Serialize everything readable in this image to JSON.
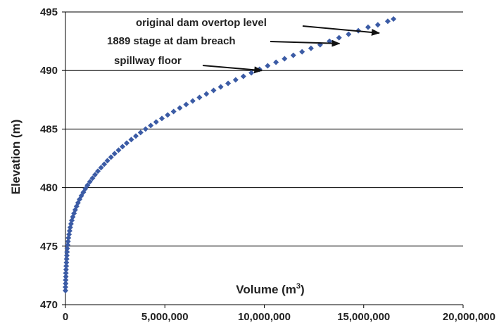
{
  "chart_data": {
    "type": "scatter",
    "title": "",
    "xlabel": "Volume (m",
    "xlabel_superscript": "3",
    "xlabel_suffix": ")",
    "ylabel": "Elevation (m)",
    "xlim": [
      0,
      20000000
    ],
    "ylim": [
      470,
      495
    ],
    "xticks": [
      0,
      5000000,
      10000000,
      15000000,
      20000000
    ],
    "xtick_labels": [
      "0",
      "5,000,000",
      "10,000,000",
      "15,000,000",
      "20,000,000"
    ],
    "yticks": [
      470,
      475,
      480,
      485,
      490,
      495
    ],
    "ytick_labels": [
      "470",
      "475",
      "480",
      "485",
      "490",
      "495"
    ],
    "grid": "horizontal",
    "marker_color": "#3b5ba5",
    "points": [
      [
        0,
        471.2
      ],
      [
        0,
        471.5
      ],
      [
        10000,
        471.8
      ],
      [
        10000,
        472.1
      ],
      [
        20000,
        472.4
      ],
      [
        20000,
        472.7
      ],
      [
        30000,
        473.0
      ],
      [
        40000,
        473.3
      ],
      [
        50000,
        473.6
      ],
      [
        60000,
        473.9
      ],
      [
        70000,
        474.2
      ],
      [
        80000,
        474.5
      ],
      [
        90000,
        474.8
      ],
      [
        110000,
        475.1
      ],
      [
        130000,
        475.4
      ],
      [
        150000,
        475.7
      ],
      [
        180000,
        476.0
      ],
      [
        210000,
        476.3
      ],
      [
        240000,
        476.6
      ],
      [
        280000,
        476.9
      ],
      [
        320000,
        477.2
      ],
      [
        370000,
        477.5
      ],
      [
        430000,
        477.8
      ],
      [
        490000,
        478.1
      ],
      [
        560000,
        478.4
      ],
      [
        630000,
        478.7
      ],
      [
        710000,
        479.0
      ],
      [
        800000,
        479.3
      ],
      [
        900000,
        479.6
      ],
      [
        1000000,
        479.9
      ],
      [
        1110000,
        480.2
      ],
      [
        1230000,
        480.5
      ],
      [
        1360000,
        480.8
      ],
      [
        1490000,
        481.1
      ],
      [
        1630000,
        481.4
      ],
      [
        1790000,
        481.7
      ],
      [
        1950000,
        482.0
      ],
      [
        2110000,
        482.3
      ],
      [
        2290000,
        482.6
      ],
      [
        2470000,
        482.9
      ],
      [
        2670000,
        483.2
      ],
      [
        2870000,
        483.5
      ],
      [
        3080000,
        483.8
      ],
      [
        3310000,
        484.1
      ],
      [
        3540000,
        484.4
      ],
      [
        3780000,
        484.7
      ],
      [
        4030000,
        485.0
      ],
      [
        4290000,
        485.3
      ],
      [
        4560000,
        485.6
      ],
      [
        4850000,
        485.9
      ],
      [
        5140000,
        486.2
      ],
      [
        5440000,
        486.5
      ],
      [
        5750000,
        486.8
      ],
      [
        6070000,
        487.1
      ],
      [
        6400000,
        487.4
      ],
      [
        6740000,
        487.7
      ],
      [
        7090000,
        488.0
      ],
      [
        7450000,
        488.3
      ],
      [
        7810000,
        488.6
      ],
      [
        8180000,
        488.9
      ],
      [
        8560000,
        489.2
      ],
      [
        8950000,
        489.5
      ],
      [
        9350000,
        489.8
      ],
      [
        9760000,
        490.1
      ],
      [
        10170000,
        490.4
      ],
      [
        10590000,
        490.7
      ],
      [
        11020000,
        491.0
      ],
      [
        11460000,
        491.3
      ],
      [
        11900000,
        491.6
      ],
      [
        12350000,
        491.9
      ],
      [
        12810000,
        492.2
      ],
      [
        13280000,
        492.5
      ],
      [
        13760000,
        492.8
      ],
      [
        14240000,
        493.1
      ],
      [
        14730000,
        493.4
      ],
      [
        15220000,
        493.7
      ],
      [
        15710000,
        493.9
      ],
      [
        16210000,
        494.2
      ],
      [
        16500000,
        494.4
      ]
    ],
    "annotations": [
      {
        "text": "original dam overtop level",
        "x": 16000000,
        "y": 493.2
      },
      {
        "text": "1889 stage at dam breach",
        "x": 14000000,
        "y": 492.3
      },
      {
        "text": "spillway floor",
        "x": 10100000,
        "y": 490.0
      }
    ]
  }
}
